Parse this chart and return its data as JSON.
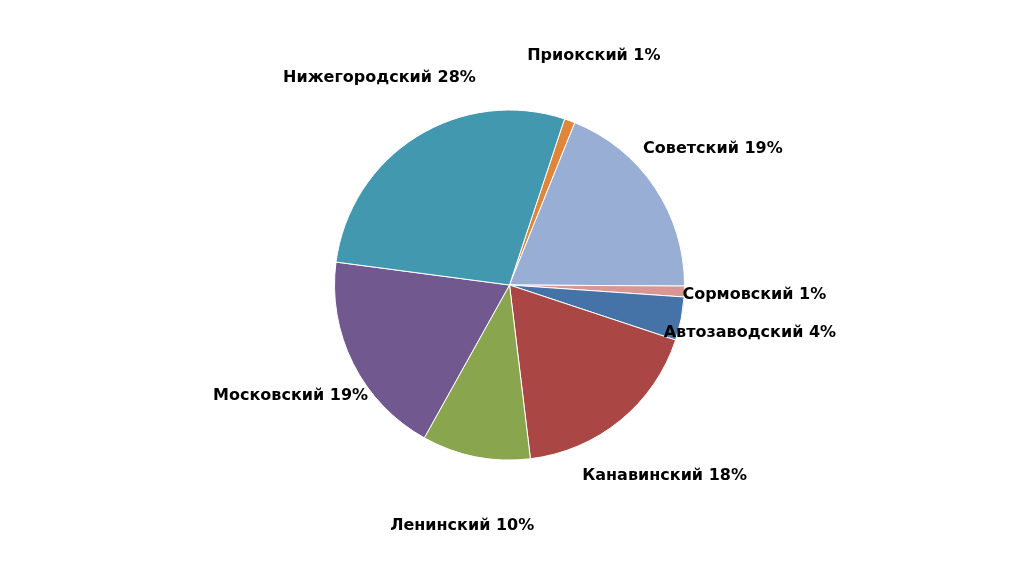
{
  "chart_data": {
    "type": "pie",
    "categories": [
      "Приокский",
      "Советский",
      "Сормовский",
      "Автозаводский",
      "Канавинский",
      "Ленинский",
      "Московский",
      "Нижегородский"
    ],
    "values": [
      1,
      19,
      1,
      4,
      18,
      10,
      19,
      28
    ],
    "value_labels": [
      "1%",
      "19%",
      "1%",
      "4%",
      "18%",
      "10%",
      "19%",
      "28%"
    ],
    "colors": [
      "#e0853a",
      "#98aed4",
      "#d99694",
      "#4572a7",
      "#aa4643",
      "#89a54e",
      "#71588f",
      "#4198af"
    ],
    "legend": false
  }
}
